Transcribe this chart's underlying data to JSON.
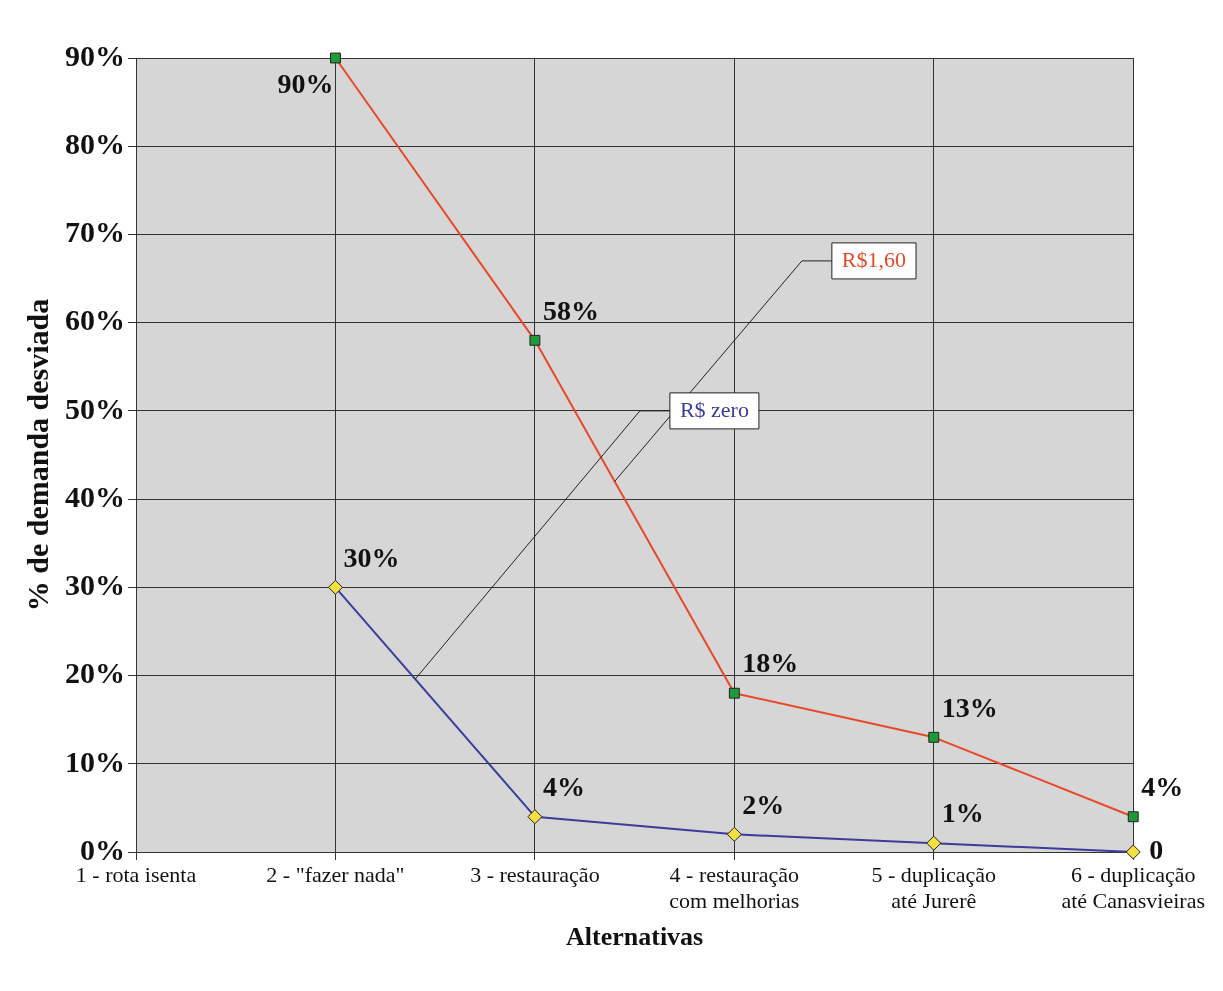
{
  "chart_data": {
    "type": "line",
    "xlabel": "Alternativas",
    "ylabel": "% de demanda desviada",
    "categories": [
      "1 - rota isenta",
      "2 - \"fazer nada\"",
      "3 - restauração",
      "4 - restauração com melhorias",
      "5 - duplicação até Jurerê",
      "6 - duplicação até Canasvieiras"
    ],
    "series": [
      {
        "name": "R$1,60",
        "color": "#e8482a",
        "marker": "square",
        "values": [
          null,
          90,
          58,
          18,
          13,
          4
        ],
        "value_labels": [
          null,
          "90%",
          "58%",
          "18%",
          "13%",
          "4%"
        ]
      },
      {
        "name": "R$ zero",
        "color": "#3c3c9c",
        "marker": "diamond",
        "values": [
          null,
          30,
          4,
          2,
          1,
          0
        ],
        "value_labels": [
          null,
          "30%",
          "4%",
          "2%",
          "1%",
          "0"
        ]
      }
    ],
    "ylim": [
      0,
      90
    ],
    "yticks": [
      {
        "value": 0,
        "label": "0%"
      },
      {
        "value": 10,
        "label": "10%"
      },
      {
        "value": 20,
        "label": "20%"
      },
      {
        "value": 30,
        "label": "30%"
      },
      {
        "value": 40,
        "label": "40%"
      },
      {
        "value": 50,
        "label": "50%"
      },
      {
        "value": 60,
        "label": "60%"
      },
      {
        "value": 70,
        "label": "70%"
      },
      {
        "value": 80,
        "label": "80%"
      },
      {
        "value": 90,
        "label": "90%"
      }
    ],
    "grid": true,
    "legend": false
  }
}
